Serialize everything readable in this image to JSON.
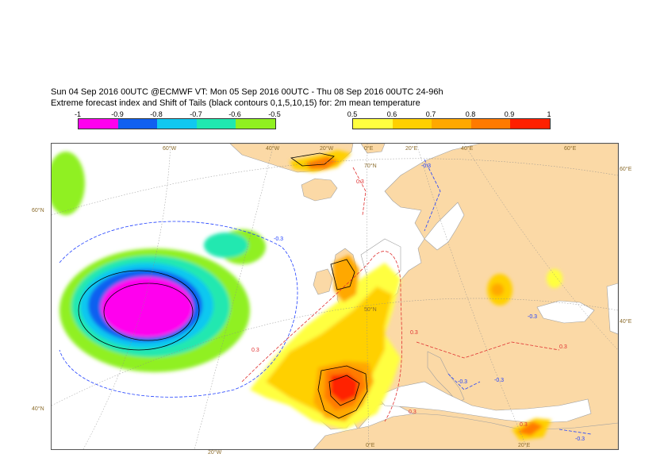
{
  "title_line1": "Sun 04 Sep 2016 00UTC @ECMWF VT: Mon 05 Sep 2016 00UTC - Thu 08 Sep 2016 00UTC  24-96h",
  "title_line2": "Extreme forecast index and Shift of Tails (black contours 0,1,5,10,15) for: 2m mean temperature",
  "legend_negative": {
    "ticks": [
      "-1",
      "-0.9",
      "-0.8",
      "-0.7",
      "-0.6",
      "-0.5"
    ],
    "colors": [
      "#ff00ee",
      "#1060f0",
      "#10c8f0",
      "#20e8b0",
      "#90f020"
    ]
  },
  "legend_positive": {
    "ticks": [
      "0.5",
      "0.6",
      "0.7",
      "0.8",
      "0.9",
      "1"
    ],
    "colors": [
      "#ffff40",
      "#ffd000",
      "#ffa800",
      "#ff7a00",
      "#ff2000"
    ]
  },
  "map": {
    "land_color": "#fbd9a6",
    "longitude_labels_top": [
      "60°W",
      "40°W",
      "20°W",
      "0°E",
      "20°E",
      "40°E",
      "60°E"
    ],
    "longitude_labels_bottom": [
      "20°W",
      "0°E",
      "20°E"
    ],
    "latitude_labels_left": [
      "60°N",
      "40°N"
    ],
    "latitude_labels_right": [
      "60°E",
      "40°E"
    ],
    "latitude_labels_inner": [
      "70°N",
      "50°N"
    ],
    "contour_labels_blue": [
      "-0.3",
      "-0.3",
      "-0.3",
      "-0.3",
      "-0.3",
      "-0.3"
    ],
    "contour_labels_red": [
      "0.3",
      "0.3",
      "0.3",
      "0.3",
      "0.3",
      "0.3"
    ]
  }
}
